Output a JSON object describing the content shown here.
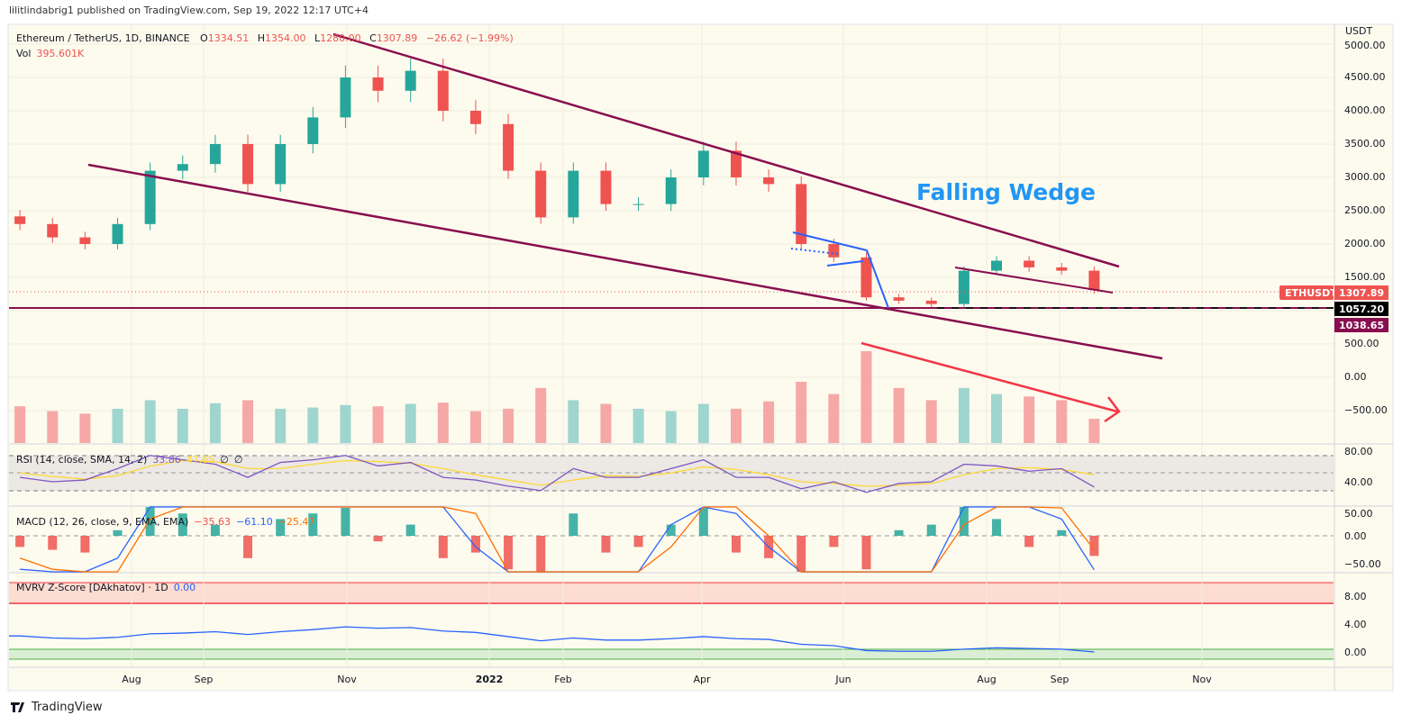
{
  "header": {
    "published": "lilitlindabrig1 published on TradingView.com, Sep 19, 2022 12:17 UTC+4"
  },
  "legend": {
    "symbol": "Ethereum / TetherUS, 1D, BINANCE",
    "open_label": "O",
    "open": "1334.51",
    "high_label": "H",
    "high": "1354.00",
    "low_label": "L",
    "low": "1280.00",
    "close_label": "C",
    "close": "1307.89",
    "change": "−26.62 (−1.99%)",
    "vol_label": "Vol",
    "vol": "395.601K"
  },
  "price_axis": {
    "unit": "USDT",
    "ticks": [
      "5000.00",
      "4500.00",
      "4000.00",
      "3500.00",
      "3000.00",
      "2500.00",
      "2000.00",
      "1500.00",
      "500.00",
      "0.00",
      "−500.00"
    ]
  },
  "price_labels": {
    "symbol": "ETHUSDT",
    "last": "1307.89",
    "line1": "1057.20",
    "line2": "1038.65"
  },
  "annotation": {
    "text": "Falling Wedge"
  },
  "rsi": {
    "title": "RSI (14, close, SMA, 14, 2)",
    "v1": "33.86",
    "v2": "47.65",
    "v3": "∅",
    "v4": "∅",
    "ticks": [
      "80.00",
      "40.00"
    ]
  },
  "macd": {
    "title": "MACD (12, 26, close, 9, EMA, EMA)",
    "hist": "−35.63",
    "macd": "−61.10",
    "signal": "−25.47",
    "ticks": [
      "50.00",
      "0.00",
      "−50.00"
    ]
  },
  "mvrv": {
    "title": "MVRV Z-Score [DAkhatov] · 1D",
    "value": "0.00",
    "ticks": [
      "8.00",
      "4.00",
      "0.00"
    ]
  },
  "time_axis": [
    "Aug",
    "Sep",
    "Nov",
    "2022",
    "Feb",
    "Apr",
    "Jun",
    "Aug",
    "Sep",
    "Nov"
  ],
  "footer": {
    "brand": "TradingView"
  },
  "colors": {
    "up": "#26a69a",
    "down": "#ef5350",
    "trendline": "#880e4f",
    "wedge": "#2962ff",
    "arrow": "#f23645",
    "rsi": "#7e57c2",
    "rsi_ma": "#fdd835",
    "macd": "#2962ff",
    "signal": "#ff6d00",
    "background": "#fdfbee"
  },
  "chart_data": {
    "type": "candlestick",
    "title": "Ethereum / TetherUS, 1D, BINANCE",
    "ylabel": "USDT",
    "ylim": [
      -600,
      5000
    ],
    "grid": true,
    "sampling_note_visible": false,
    "dates": [
      "2021-06-14",
      "2021-06-28",
      "2021-07-12",
      "2021-07-26",
      "2021-08-09",
      "2021-08-23",
      "2021-09-06",
      "2021-09-20",
      "2021-10-04",
      "2021-10-18",
      "2021-11-01",
      "2021-11-15",
      "2021-11-29",
      "2021-12-13",
      "2021-12-27",
      "2022-01-10",
      "2022-01-24",
      "2022-02-07",
      "2022-02-21",
      "2022-03-07",
      "2022-03-21",
      "2022-04-04",
      "2022-04-18",
      "2022-05-02",
      "2022-05-16",
      "2022-05-30",
      "2022-06-13",
      "2022-06-27",
      "2022-07-11",
      "2022-07-25",
      "2022-08-08",
      "2022-08-22",
      "2022-09-05",
      "2022-09-19"
    ],
    "close": [
      2300,
      2100,
      2000,
      2300,
      3100,
      3200,
      3500,
      2900,
      3500,
      3900,
      4500,
      4300,
      4600,
      4000,
      3800,
      3100,
      2400,
      3100,
      2600,
      2600,
      3000,
      3400,
      3000,
      2900,
      2000,
      1800,
      1200,
      1150,
      1100,
      1600,
      1750,
      1650,
      1600,
      1308
    ],
    "volume_k": [
      600,
      520,
      480,
      560,
      700,
      560,
      650,
      700,
      560,
      580,
      620,
      600,
      640,
      660,
      520,
      560,
      900,
      700,
      640,
      560,
      520,
      640,
      560,
      680,
      1000,
      800,
      1500,
      900,
      700,
      900,
      800,
      760,
      700,
      396
    ],
    "rsi": [
      45,
      40,
      42,
      55,
      70,
      65,
      60,
      45,
      62,
      65,
      70,
      58,
      62,
      45,
      42,
      35,
      30,
      55,
      45,
      45,
      55,
      65,
      45,
      45,
      32,
      40,
      28,
      38,
      40,
      60,
      58,
      52,
      55,
      34
    ],
    "rsi_ma": [
      50,
      46,
      43,
      47,
      58,
      64,
      63,
      55,
      55,
      60,
      64,
      63,
      61,
      55,
      48,
      42,
      36,
      42,
      47,
      46,
      50,
      57,
      54,
      48,
      40,
      38,
      35,
      36,
      38,
      48,
      55,
      56,
      54,
      48
    ],
    "macd_hist": [
      -20,
      -25,
      -30,
      10,
      60,
      40,
      20,
      -40,
      30,
      40,
      50,
      -10,
      20,
      -40,
      -30,
      -60,
      -70,
      40,
      -30,
      -20,
      20,
      50,
      -30,
      -40,
      -70,
      -20,
      -60,
      10,
      20,
      60,
      30,
      -20,
      10,
      -36
    ],
    "macd": [
      -60,
      -80,
      -90,
      -40,
      100,
      150,
      160,
      60,
      120,
      200,
      280,
      200,
      220,
      60,
      -20,
      -150,
      -260,
      -120,
      -100,
      -80,
      20,
      120,
      40,
      -20,
      -200,
      -210,
      -230,
      -110,
      -70,
      60,
      120,
      60,
      30,
      -61
    ],
    "signal": [
      -40,
      -60,
      -80,
      -70,
      30,
      110,
      150,
      110,
      110,
      160,
      230,
      220,
      210,
      120,
      40,
      -80,
      -200,
      -160,
      -120,
      -90,
      -20,
      80,
      60,
      0,
      -140,
      -190,
      -210,
      -140,
      -90,
      20,
      90,
      80,
      50,
      -25
    ],
    "mvrv_z": [
      2.3,
      2.0,
      1.9,
      2.1,
      2.6,
      2.7,
      2.9,
      2.5,
      2.9,
      3.2,
      3.6,
      3.4,
      3.5,
      3.0,
      2.8,
      2.2,
      1.6,
      2.0,
      1.7,
      1.7,
      1.9,
      2.2,
      1.9,
      1.8,
      1.1,
      0.9,
      0.2,
      0.1,
      0.1,
      0.4,
      0.6,
      0.5,
      0.4,
      0.0
    ],
    "mvrv_bands": {
      "red": [
        7,
        10
      ],
      "green": [
        -1,
        0.1
      ]
    },
    "horizontal_lines": [
      1057.2,
      1038.65
    ]
  }
}
